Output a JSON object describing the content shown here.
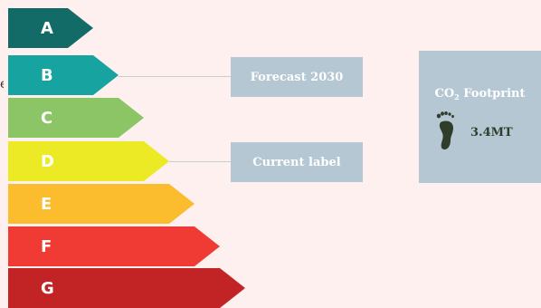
{
  "stray_text": "e",
  "rating_scale": [
    {
      "label": "A",
      "color": "#136b68"
    },
    {
      "label": "B",
      "color": "#17a3a0"
    },
    {
      "label": "C",
      "color": "#8cc565"
    },
    {
      "label": "D",
      "color": "#ecea25"
    },
    {
      "label": "E",
      "color": "#fbbc2d"
    },
    {
      "label": "F",
      "color": "#ef3b33"
    },
    {
      "label": "G",
      "color": "#c22426"
    }
  ],
  "markers": {
    "forecast": {
      "label": "Forecast 2030",
      "rating": "B"
    },
    "current": {
      "label": "Current label",
      "rating": "D"
    }
  },
  "co2": {
    "title_prefix": "CO",
    "title_subscript": "2",
    "title_suffix": " Footprint",
    "icon": "footprint-icon",
    "value": "3.4MT"
  },
  "colors": {
    "background": "#fdf0ef",
    "tag_background": "#b4c7d3",
    "footprint": "#2f3e2a"
  }
}
